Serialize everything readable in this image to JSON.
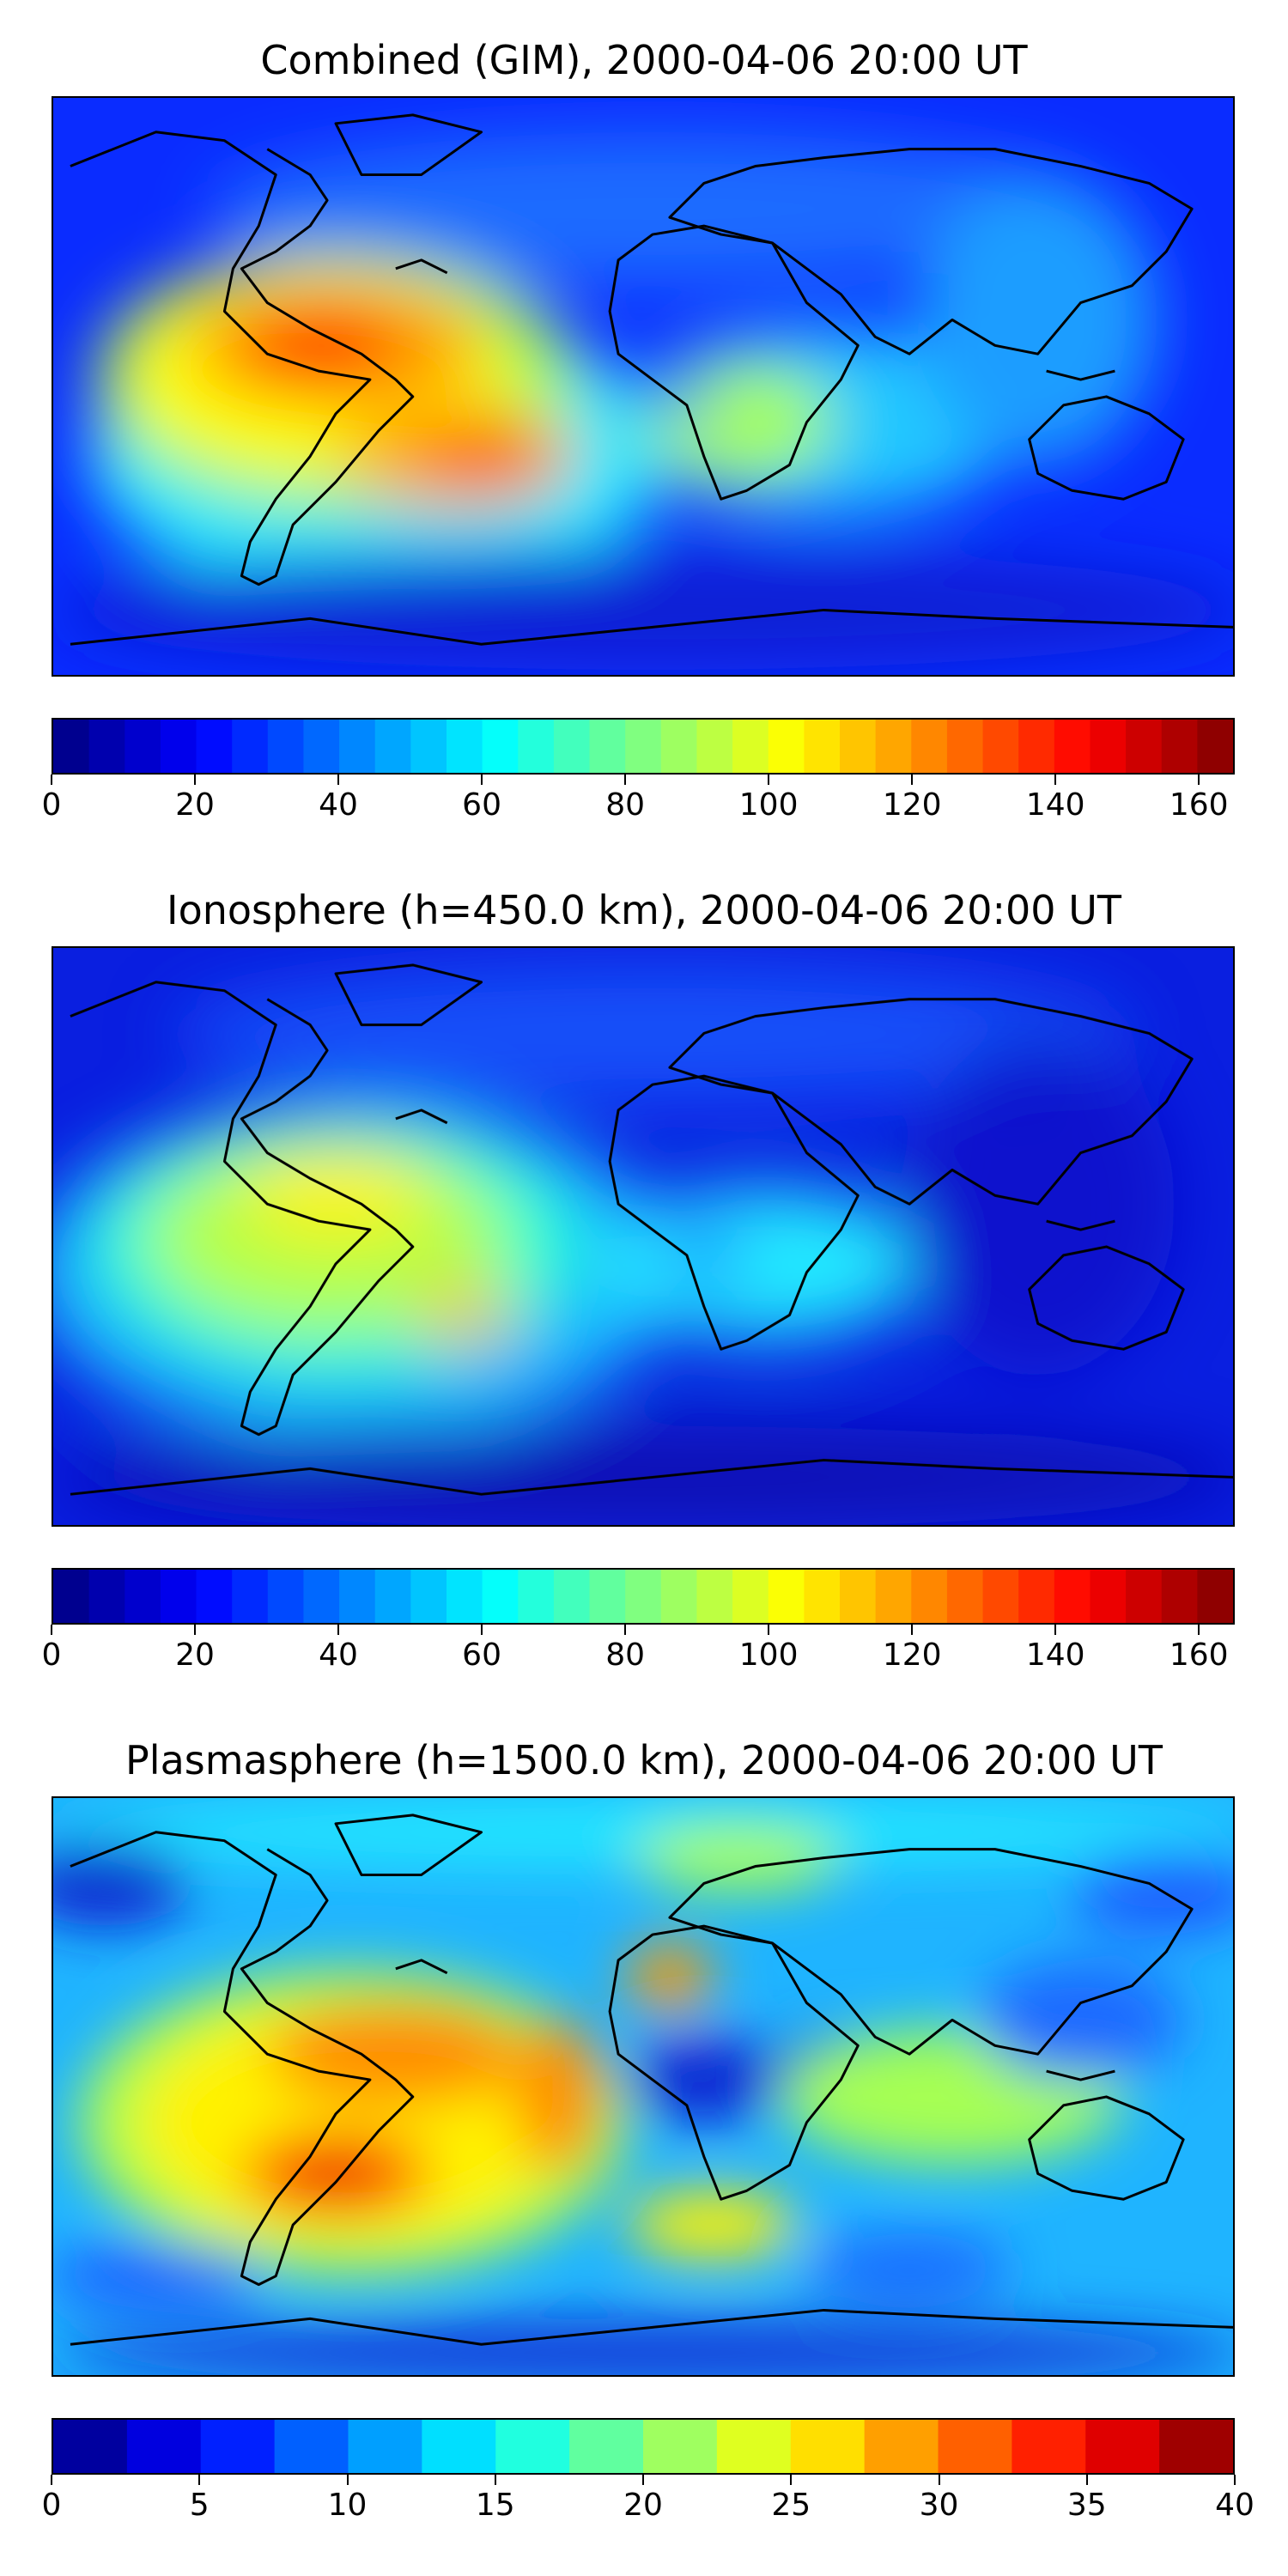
{
  "panels": [
    {
      "title": "Combined (GIM), 2000-04-06 20:00 UT",
      "colorbar": {
        "min": 0,
        "max": 165,
        "step": 5,
        "ticks": [
          "0",
          "20",
          "40",
          "60",
          "80",
          "100",
          "120",
          "140",
          "160"
        ]
      }
    },
    {
      "title": "Ionosphere  (h=450.0 km), 2000-04-06 20:00 UT",
      "colorbar": {
        "min": 0,
        "max": 165,
        "step": 5,
        "ticks": [
          "0",
          "20",
          "40",
          "60",
          "80",
          "100",
          "120",
          "140",
          "160"
        ]
      }
    },
    {
      "title": "Plasmasphere (h=1500.0 km), 2000-04-06 20:00 UT",
      "colorbar": {
        "min": 0,
        "max": 40,
        "step": 2.5,
        "ticks": [
          "0",
          "5",
          "10",
          "15",
          "20",
          "25",
          "30",
          "35",
          "40"
        ]
      }
    }
  ],
  "colormap": "jet",
  "coastline_color": "#000000"
}
